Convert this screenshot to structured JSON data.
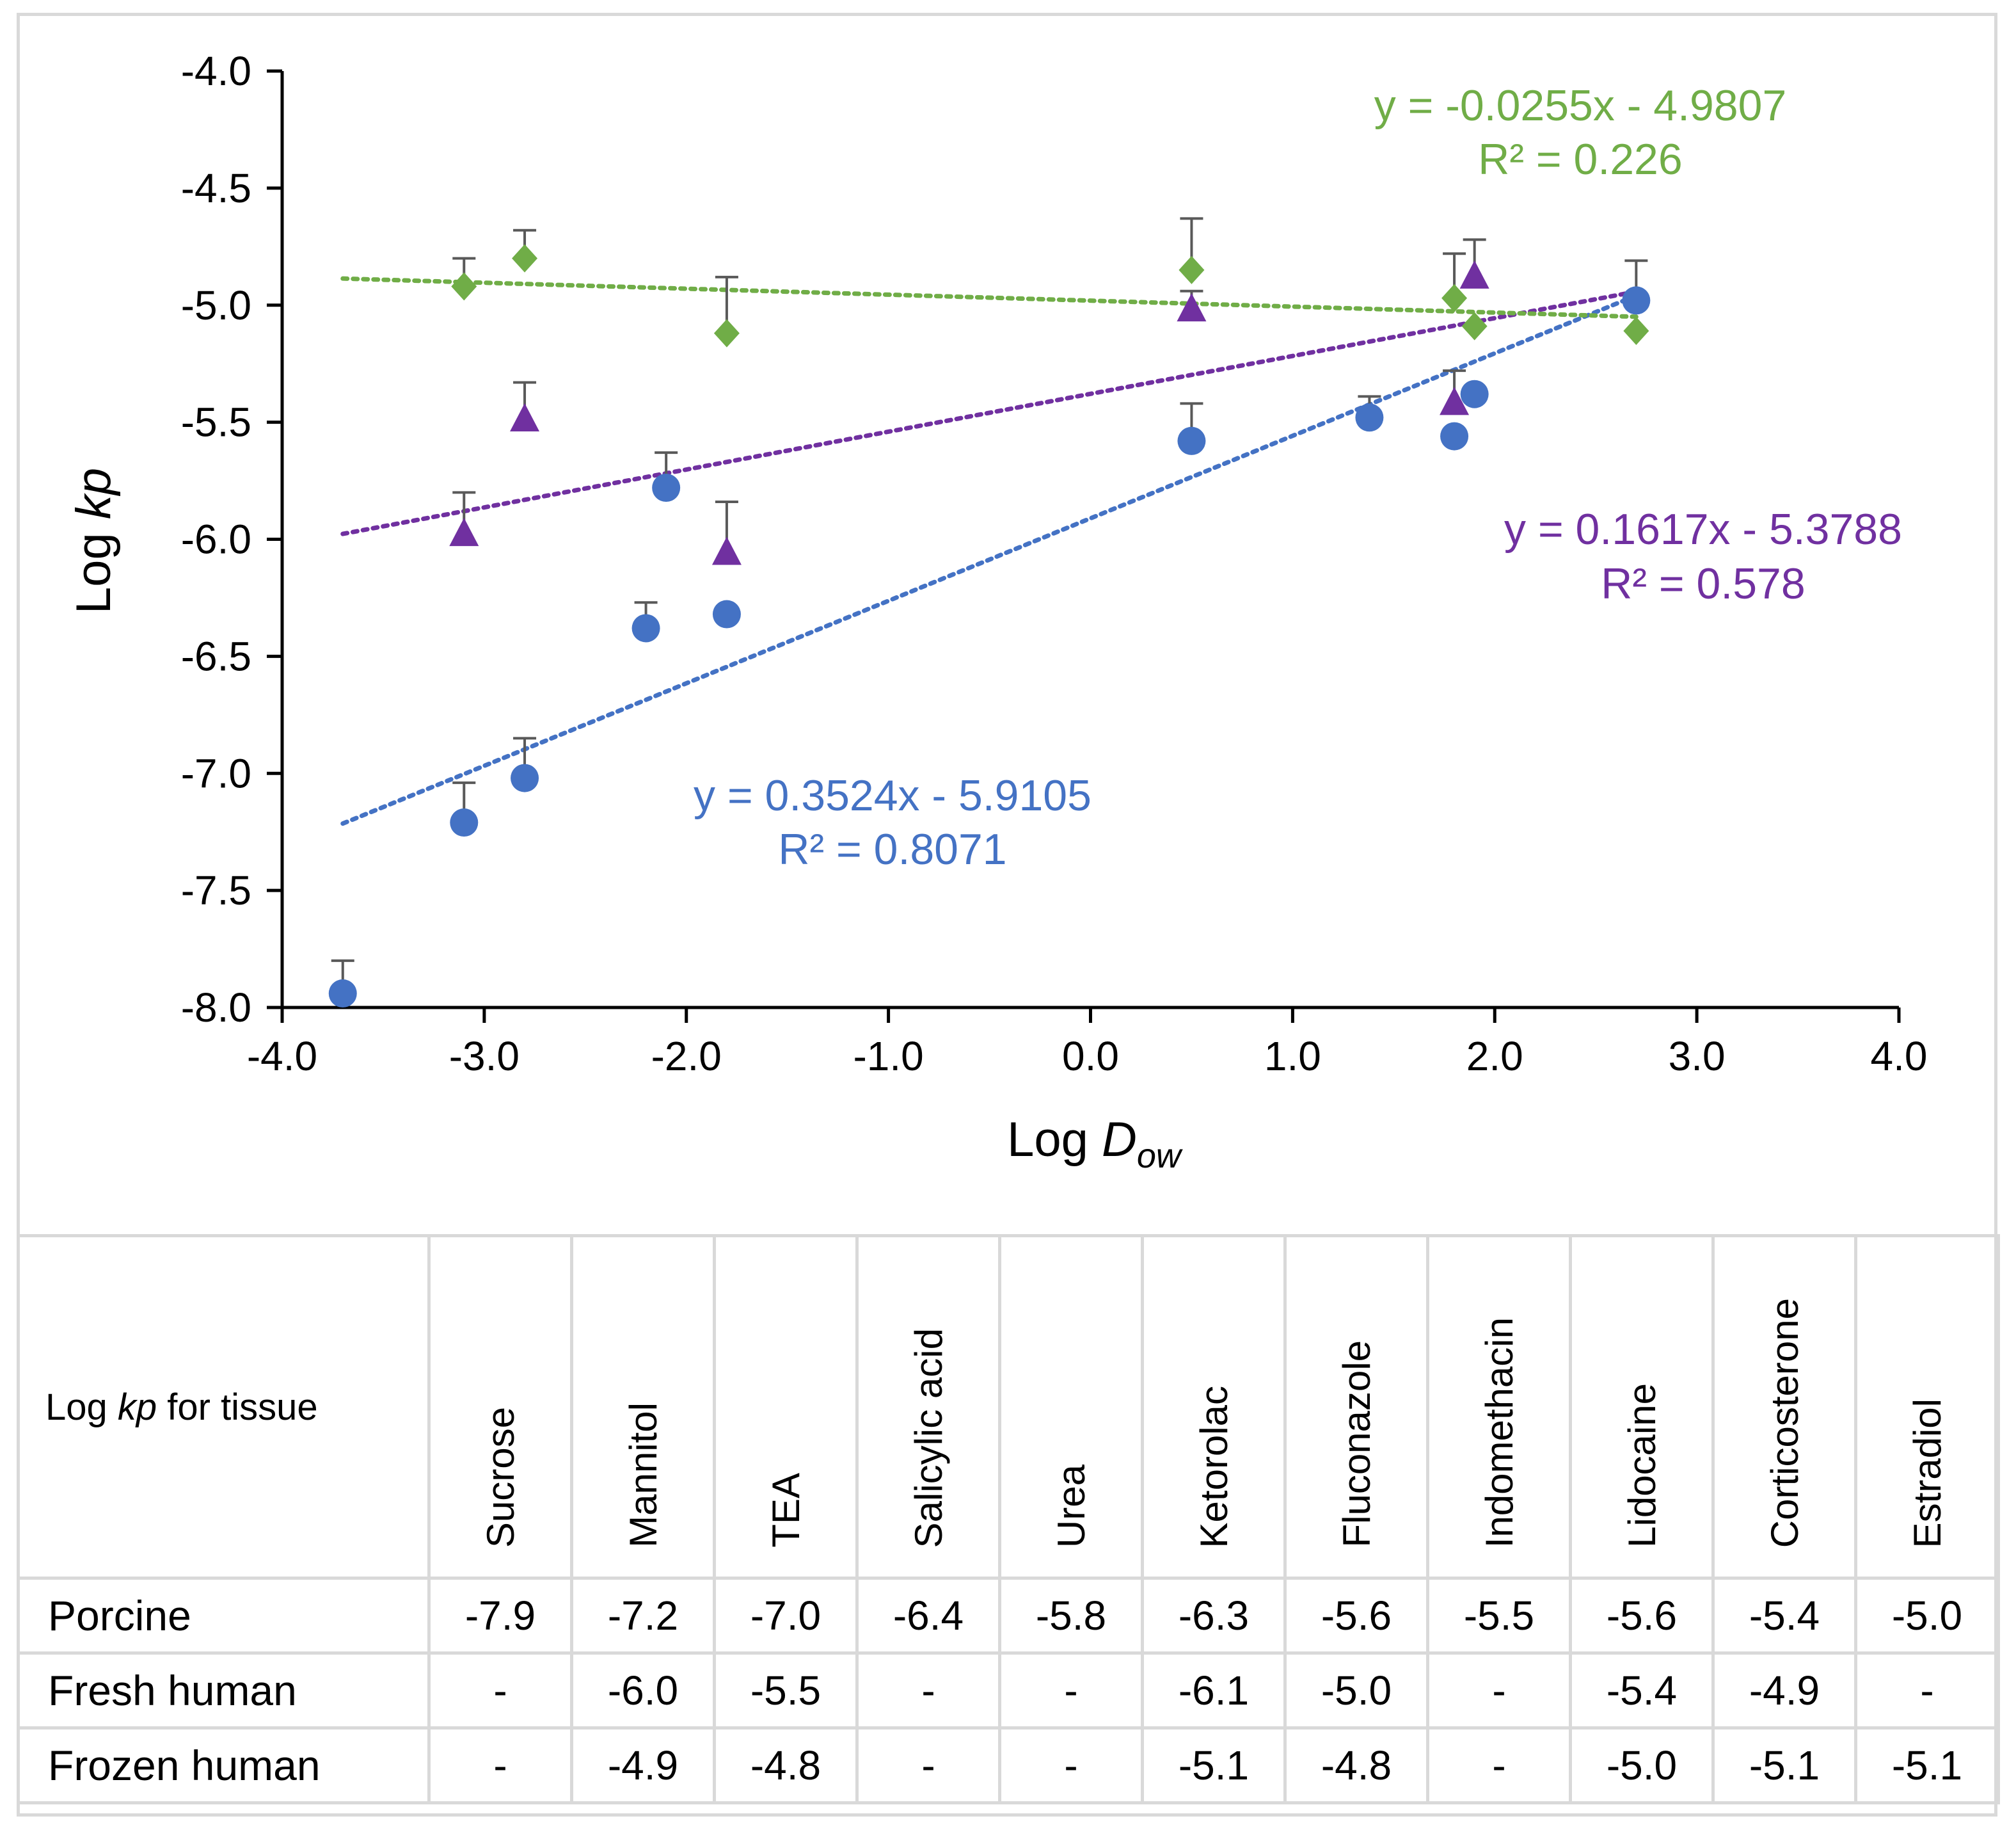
{
  "chart_data": {
    "type": "scatter",
    "xlabel": "Log Dow",
    "xlabel_main": "Log ",
    "xlabel_D": "D",
    "xlabel_sub": "ow",
    "ylabel": "Log kp",
    "ylabel_main": "Log ",
    "ylabel_italic": "kp",
    "xlim": [
      -4.0,
      4.0
    ],
    "ylim": [
      -8.0,
      -4.0
    ],
    "xticks": [
      "-4.0",
      "-3.0",
      "-2.0",
      "-1.0",
      "0.0",
      "1.0",
      "2.0",
      "3.0",
      "4.0"
    ],
    "yticks": [
      "-4.0",
      "-4.5",
      "-5.0",
      "-5.5",
      "-6.0",
      "-6.5",
      "-7.0",
      "-7.5",
      "-8.0"
    ],
    "series": [
      {
        "name": "Porcine",
        "color": "#4472c4",
        "marker": "circle",
        "x": [
          -3.7,
          -3.1,
          -2.8,
          -2.2,
          -2.1,
          -1.8,
          0.5,
          1.38,
          1.8,
          1.9,
          2.7
        ],
        "y": [
          -7.94,
          -7.21,
          -7.02,
          -6.38,
          -5.78,
          -6.32,
          -5.58,
          -5.48,
          -5.56,
          -5.38,
          -4.98
        ],
        "err": [
          0.14,
          0.17,
          0.17,
          0.11,
          0.15,
          0.0,
          0.16,
          0.09,
          0.0,
          0.0,
          0.17
        ],
        "trendline": {
          "slope": 0.3524,
          "intercept": -5.9105,
          "x_range": [
            -3.7,
            2.7
          ],
          "equation": "y = 0.3524x - 5.9105",
          "r2": "R² = 0.8071"
        }
      },
      {
        "name": "Fresh human",
        "color": "#7030a0",
        "marker": "triangle",
        "x": [
          -3.1,
          -2.8,
          -1.8,
          0.5,
          1.8,
          1.9
        ],
        "y": [
          -5.98,
          -5.49,
          -6.06,
          -5.02,
          -5.42,
          -4.88
        ],
        "err": [
          0.18,
          0.16,
          0.22,
          0.08,
          0.14,
          0.16
        ],
        "trendline": {
          "slope": 0.1617,
          "intercept": -5.3788,
          "x_range": [
            -3.7,
            2.7
          ],
          "equation": "y = 0.1617x - 5.3788",
          "r2": "R² = 0.578"
        }
      },
      {
        "name": "Frozen human",
        "color": "#70ad47",
        "marker": "diamond",
        "x": [
          -3.1,
          -2.8,
          -1.8,
          0.5,
          1.8,
          1.9,
          2.7
        ],
        "y": [
          -4.92,
          -4.8,
          -5.12,
          -4.85,
          -4.97,
          -5.09,
          -5.11
        ],
        "err": [
          0.12,
          0.12,
          0.24,
          0.22,
          0.19,
          0.0,
          0.0
        ],
        "trendline": {
          "slope": -0.0255,
          "intercept": -4.9807,
          "x_range": [
            -3.7,
            2.7
          ],
          "equation": "y = -0.0255x - 4.9807",
          "r2": "R² = 0.226"
        }
      }
    ]
  },
  "table": {
    "corner_prefix": "Log ",
    "corner_italic": "kp",
    "corner_suffix": " for tissue",
    "columns": [
      "Sucrose",
      "Mannitol",
      "TEA",
      "Salicylic acid",
      "Urea",
      "Ketorolac",
      "Fluconazole",
      "Indomethacin",
      "Lidocaine",
      "Corticosterone",
      "Estradiol"
    ],
    "rows": [
      {
        "label": "Porcine",
        "values": [
          "-7.9",
          "-7.2",
          "-7.0",
          "-6.4",
          "-5.8",
          "-6.3",
          "-5.6",
          "-5.5",
          "-5.6",
          "-5.4",
          "-5.0"
        ]
      },
      {
        "label": "Fresh human",
        "values": [
          "-",
          "-6.0",
          "-5.5",
          "-",
          "-",
          "-6.1",
          "-5.0",
          "-",
          "-5.4",
          "-4.9",
          "-"
        ]
      },
      {
        "label": "Frozen human",
        "values": [
          "-",
          "-4.9",
          "-4.8",
          "-",
          "-",
          "-5.1",
          "-4.8",
          "-",
          "-5.0",
          "-5.1",
          "-5.1"
        ]
      }
    ]
  }
}
